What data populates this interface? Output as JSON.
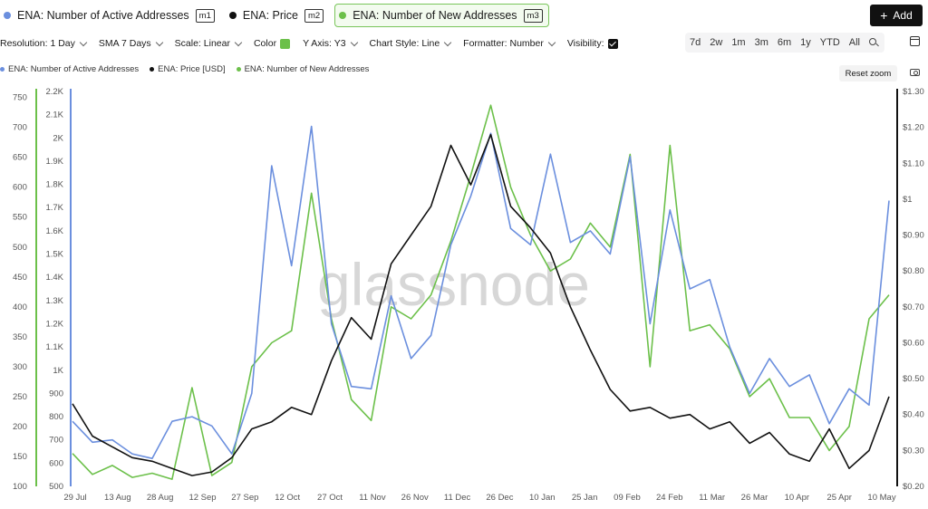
{
  "tabs": [
    {
      "label": "ENA: Number of Active Addresses",
      "badge": "m1",
      "color": "#6b8fde",
      "active": false
    },
    {
      "label": "ENA: Price",
      "badge": "m2",
      "color": "#111111",
      "active": false
    },
    {
      "label": "ENA: Number of New Addresses",
      "badge": "m3",
      "color": "#6cc04a",
      "active": true
    }
  ],
  "add_button": {
    "label": "Add",
    "icon": "plus-icon"
  },
  "toolbar": {
    "resolution": "Resolution: 1 Day",
    "sma": "SMA 7 Days",
    "scale": "Scale: Linear",
    "color": "Color",
    "color_value": "#6cc04a",
    "y_axis": "Y Axis: Y3",
    "chart_style": "Chart Style: Line",
    "formatter": "Formatter: Number",
    "visibility": "Visibility:"
  },
  "ranges": [
    "7d",
    "2w",
    "1m",
    "3m",
    "6m",
    "1y",
    "YTD",
    "All"
  ],
  "legend": [
    {
      "label": "ENA: Number of Active Addresses",
      "color": "#6b8fde"
    },
    {
      "label": "ENA: Price [USD]",
      "color": "#111111"
    },
    {
      "label": "ENA: Number of New Addresses",
      "color": "#6cc04a"
    }
  ],
  "reset_zoom": "Reset zoom",
  "watermark": "glassnode",
  "chart_data": {
    "type": "line",
    "x": [
      "2024-07-29",
      "2024-08-05",
      "2024-08-12",
      "2024-08-19",
      "2024-08-26",
      "2024-09-02",
      "2024-09-09",
      "2024-09-16",
      "2024-09-23",
      "2024-09-30",
      "2024-10-07",
      "2024-10-14",
      "2024-10-21",
      "2024-10-28",
      "2024-11-04",
      "2024-11-11",
      "2024-11-18",
      "2024-11-25",
      "2024-12-02",
      "2024-12-09",
      "2024-12-16",
      "2024-12-23",
      "2024-12-30",
      "2025-01-06",
      "2025-01-13",
      "2025-01-20",
      "2025-01-27",
      "2025-02-03",
      "2025-02-10",
      "2025-02-17",
      "2025-02-24",
      "2025-03-03",
      "2025-03-10",
      "2025-03-17",
      "2025-03-24",
      "2025-03-31",
      "2025-04-07",
      "2025-04-14",
      "2025-04-21",
      "2025-04-28",
      "2025-05-05",
      "2025-05-12"
    ],
    "x_ticks": [
      "29 Jul",
      "13 Aug",
      "28 Aug",
      "12 Sep",
      "27 Sep",
      "12 Oct",
      "27 Oct",
      "11 Nov",
      "26 Nov",
      "11 Dec",
      "26 Dec",
      "10 Jan",
      "25 Jan",
      "09 Feb",
      "24 Feb",
      "11 Mar",
      "26 Mar",
      "10 Apr",
      "25 Apr",
      "10 May"
    ],
    "axes": {
      "y1": {
        "ticks": [
          "100",
          "150",
          "200",
          "250",
          "300",
          "350",
          "400",
          "450",
          "500",
          "550",
          "600",
          "650",
          "700",
          "750"
        ],
        "range": [
          100,
          760
        ],
        "position": "left-outer",
        "color": "#6cc04a"
      },
      "y2": {
        "ticks": [
          "500",
          "600",
          "700",
          "800",
          "900",
          "1K",
          "1.1K",
          "1.2K",
          "1.3K",
          "1.4K",
          "1.5K",
          "1.6K",
          "1.7K",
          "1.8K",
          "1.9K",
          "2K",
          "2.1K",
          "2.2K"
        ],
        "range": [
          500,
          2200
        ],
        "position": "left-inner",
        "color": "#6b8fde"
      },
      "y3": {
        "ticks": [
          "$0.20",
          "$0.30",
          "$0.40",
          "$0.50",
          "$0.60",
          "$0.70",
          "$0.80",
          "$0.90",
          "$1",
          "$1.10",
          "$1.20",
          "$1.30"
        ],
        "range": [
          0.2,
          1.3
        ],
        "position": "right",
        "color": "#111111"
      }
    },
    "series": [
      {
        "name": "ENA: Number of Active Addresses",
        "axis": "y2",
        "color": "#6b8fde",
        "values": [
          780,
          690,
          700,
          640,
          620,
          780,
          800,
          760,
          640,
          900,
          1880,
          1450,
          2050,
          1200,
          930,
          920,
          1320,
          1050,
          1150,
          1540,
          1750,
          2020,
          1610,
          1540,
          1930,
          1550,
          1600,
          1500,
          1920,
          1200,
          1690,
          1350,
          1390,
          1100,
          900,
          1050,
          930,
          980,
          770,
          920,
          850,
          1730
        ]
      },
      {
        "name": "ENA: Price [USD]",
        "axis": "y3",
        "color": "#111111",
        "values": [
          0.43,
          0.34,
          0.31,
          0.28,
          0.27,
          0.25,
          0.23,
          0.24,
          0.28,
          0.36,
          0.38,
          0.42,
          0.4,
          0.55,
          0.67,
          0.61,
          0.82,
          0.9,
          0.98,
          1.15,
          1.04,
          1.18,
          0.98,
          0.92,
          0.85,
          0.7,
          0.58,
          0.47,
          0.41,
          0.42,
          0.39,
          0.4,
          0.36,
          0.38,
          0.32,
          0.35,
          0.29,
          0.27,
          0.36,
          0.25,
          0.3,
          0.45
        ]
      },
      {
        "name": "ENA: Number of New Addresses",
        "axis": "y1",
        "color": "#6cc04a",
        "values": [
          155,
          120,
          135,
          115,
          122,
          112,
          265,
          118,
          140,
          300,
          340,
          360,
          590,
          380,
          245,
          210,
          400,
          380,
          420,
          510,
          620,
          737,
          600,
          520,
          460,
          480,
          540,
          500,
          655,
          300,
          670,
          360,
          370,
          330,
          250,
          280,
          215,
          215,
          160,
          200,
          380,
          420
        ]
      }
    ],
    "grid": false,
    "legend_position": "top-left"
  }
}
